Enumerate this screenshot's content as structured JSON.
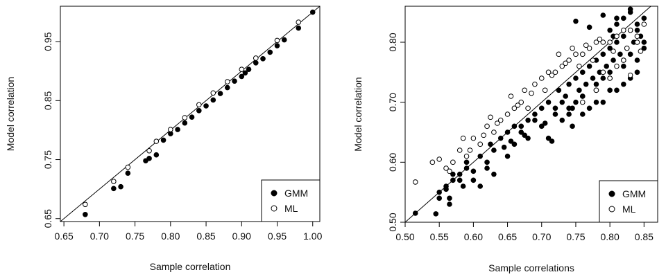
{
  "chart_data": [
    {
      "type": "scatter",
      "xlabel": "Sample correlation",
      "ylabel": "Model correlation",
      "xlim": [
        0.645,
        1.01
      ],
      "ylim": [
        0.645,
        1.01
      ],
      "x_ticks": [
        "0.65",
        "0.70",
        "0.75",
        "0.80",
        "0.85",
        "0.90",
        "0.95",
        "1.00"
      ],
      "y_ticks": [
        "0.65",
        "0.75",
        "0.85",
        "0.95"
      ],
      "reference_line": "y = x",
      "legend": {
        "placement": "bottom-right",
        "entries": [
          "GMM",
          "ML"
        ]
      },
      "series": [
        {
          "name": "GMM",
          "marker": "filled-circle",
          "x": [
            0.68,
            0.72,
            0.73,
            0.74,
            0.765,
            0.77,
            0.78,
            0.79,
            0.8,
            0.81,
            0.82,
            0.83,
            0.84,
            0.85,
            0.86,
            0.87,
            0.88,
            0.89,
            0.9,
            0.905,
            0.91,
            0.92,
            0.93,
            0.94,
            0.95,
            0.96,
            0.98,
            1.0
          ],
          "y": [
            0.657,
            0.701,
            0.704,
            0.727,
            0.748,
            0.752,
            0.758,
            0.783,
            0.794,
            0.801,
            0.812,
            0.822,
            0.833,
            0.841,
            0.851,
            0.862,
            0.872,
            0.883,
            0.891,
            0.897,
            0.903,
            0.914,
            0.921,
            0.932,
            0.943,
            0.953,
            0.973,
            1.0
          ]
        },
        {
          "name": "ML",
          "marker": "open-circle",
          "x": [
            0.68,
            0.72,
            0.74,
            0.77,
            0.78,
            0.8,
            0.82,
            0.84,
            0.86,
            0.88,
            0.9,
            0.92,
            0.95,
            0.98
          ],
          "y": [
            0.674,
            0.713,
            0.737,
            0.765,
            0.781,
            0.801,
            0.821,
            0.843,
            0.863,
            0.882,
            0.903,
            0.922,
            0.952,
            0.983
          ]
        }
      ]
    },
    {
      "type": "scatter",
      "xlabel": "Sample correlations",
      "ylabel": "Model correlation",
      "xlim": [
        0.5,
        0.87
      ],
      "ylim": [
        0.5,
        0.86
      ],
      "x_ticks": [
        "0.50",
        "0.55",
        "0.60",
        "0.65",
        "0.70",
        "0.75",
        "0.80",
        "0.85"
      ],
      "y_ticks": [
        "0.50",
        "0.60",
        "0.70",
        "0.80"
      ],
      "reference_line": "y = x",
      "legend": {
        "placement": "bottom-right",
        "entries": [
          "GMM",
          "ML"
        ]
      },
      "series": [
        {
          "name": "GMM",
          "marker": "filled-circle",
          "x": [
            0.515,
            0.545,
            0.55,
            0.56,
            0.565,
            0.57,
            0.58,
            0.585,
            0.59,
            0.6,
            0.61,
            0.62,
            0.625,
            0.63,
            0.64,
            0.645,
            0.65,
            0.655,
            0.66,
            0.67,
            0.675,
            0.68,
            0.69,
            0.7,
            0.705,
            0.71,
            0.715,
            0.72,
            0.725,
            0.73,
            0.735,
            0.74,
            0.745,
            0.75,
            0.755,
            0.76,
            0.765,
            0.77,
            0.775,
            0.78,
            0.785,
            0.79,
            0.795,
            0.8,
            0.805,
            0.81,
            0.815,
            0.82,
            0.825,
            0.83,
            0.835,
            0.84,
            0.845,
            0.85,
            0.75,
            0.76,
            0.77,
            0.78,
            0.79,
            0.8,
            0.81,
            0.82,
            0.83,
            0.84,
            0.85,
            0.7,
            0.71,
            0.72,
            0.73,
            0.74,
            0.76,
            0.78,
            0.8,
            0.82,
            0.83,
            0.84,
            0.65,
            0.66,
            0.67,
            0.68,
            0.69,
            0.6,
            0.61,
            0.62,
            0.63,
            0.55,
            0.56,
            0.57,
            0.565,
            0.58,
            0.59,
            0.8,
            0.81,
            0.82,
            0.83,
            0.84,
            0.85,
            0.75,
            0.77,
            0.79,
            0.81,
            0.83,
            0.745,
            0.76,
            0.78,
            0.8,
            0.82,
            0.84,
            0.74,
            0.79,
            0.805
          ],
          "y": [
            0.515,
            0.514,
            0.54,
            0.555,
            0.53,
            0.57,
            0.58,
            0.56,
            0.59,
            0.585,
            0.61,
            0.6,
            0.63,
            0.62,
            0.64,
            0.625,
            0.65,
            0.635,
            0.66,
            0.66,
            0.645,
            0.67,
            0.68,
            0.69,
            0.665,
            0.7,
            0.635,
            0.69,
            0.72,
            0.7,
            0.71,
            0.73,
            0.66,
            0.74,
            0.72,
            0.75,
            0.73,
            0.76,
            0.74,
            0.77,
            0.75,
            0.78,
            0.76,
            0.79,
            0.77,
            0.8,
            0.78,
            0.81,
            0.79,
            0.82,
            0.8,
            0.83,
            0.81,
            0.84,
            0.7,
            0.68,
            0.69,
            0.72,
            0.7,
            0.74,
            0.72,
            0.76,
            0.74,
            0.77,
            0.79,
            0.66,
            0.64,
            0.68,
            0.67,
            0.69,
            0.71,
            0.73,
            0.75,
            0.77,
            0.78,
            0.8,
            0.61,
            0.63,
            0.65,
            0.64,
            0.67,
            0.57,
            0.56,
            0.59,
            0.58,
            0.55,
            0.56,
            0.58,
            0.54,
            0.57,
            0.6,
            0.82,
            0.83,
            0.84,
            0.85,
            0.82,
            0.8,
            0.835,
            0.825,
            0.845,
            0.84,
            0.855,
            0.69,
            0.71,
            0.7,
            0.72,
            0.73,
            0.75,
            0.68,
            0.74,
            0.81
          ]
        },
        {
          "name": "ML",
          "marker": "open-circle",
          "x": [
            0.515,
            0.54,
            0.55,
            0.56,
            0.57,
            0.58,
            0.585,
            0.59,
            0.6,
            0.61,
            0.62,
            0.625,
            0.63,
            0.64,
            0.65,
            0.655,
            0.66,
            0.67,
            0.675,
            0.68,
            0.69,
            0.7,
            0.705,
            0.71,
            0.72,
            0.725,
            0.73,
            0.74,
            0.745,
            0.75,
            0.755,
            0.76,
            0.77,
            0.775,
            0.78,
            0.79,
            0.8,
            0.81,
            0.82,
            0.83,
            0.84,
            0.85,
            0.565,
            0.595,
            0.615,
            0.635,
            0.665,
            0.685,
            0.715,
            0.735,
            0.765,
            0.785,
            0.805,
            0.825,
            0.845,
            0.79,
            0.81,
            0.83,
            0.76,
            0.78,
            0.8,
            0.82,
            0.84
          ],
          "y": [
            0.567,
            0.6,
            0.605,
            0.59,
            0.6,
            0.62,
            0.64,
            0.61,
            0.64,
            0.63,
            0.66,
            0.675,
            0.65,
            0.67,
            0.68,
            0.71,
            0.69,
            0.7,
            0.72,
            0.69,
            0.73,
            0.74,
            0.72,
            0.75,
            0.75,
            0.78,
            0.76,
            0.77,
            0.79,
            0.78,
            0.76,
            0.78,
            0.79,
            0.77,
            0.8,
            0.8,
            0.8,
            0.81,
            0.82,
            0.82,
            0.81,
            0.83,
            0.585,
            0.62,
            0.645,
            0.665,
            0.695,
            0.715,
            0.745,
            0.765,
            0.795,
            0.805,
            0.785,
            0.79,
            0.785,
            0.75,
            0.76,
            0.745,
            0.7,
            0.72,
            0.74,
            0.77,
            0.8
          ]
        }
      ]
    }
  ]
}
